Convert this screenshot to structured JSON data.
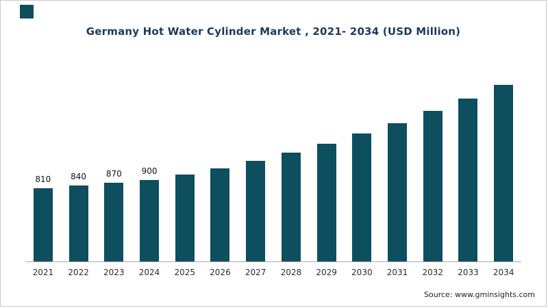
{
  "logo": {
    "color": "#0d4e5f"
  },
  "title": "Germany Hot Water Cylinder Market , 2021- 2034 (USD Million)",
  "source": "Source: www.gminsights.com",
  "chart_data": {
    "type": "bar",
    "title": "Germany Hot Water Cylinder Market , 2021- 2034 (USD Million)",
    "categories": [
      "2021",
      "2022",
      "2023",
      "2024",
      "2025",
      "2026",
      "2027",
      "2028",
      "2029",
      "2030",
      "2031",
      "2032",
      "2033",
      "2034"
    ],
    "values": [
      810,
      840,
      870,
      900,
      960,
      1030,
      1110,
      1200,
      1300,
      1410,
      1530,
      1660,
      1800,
      1950
    ],
    "data_labels": [
      "810",
      "840",
      "870",
      "900",
      null,
      null,
      null,
      null,
      null,
      null,
      null,
      null,
      null,
      null
    ],
    "bar_color": "#0d4e5f",
    "xlabel": "",
    "ylabel": "USD Million",
    "ylim": [
      0,
      2000
    ],
    "grid": false,
    "legend": false
  }
}
